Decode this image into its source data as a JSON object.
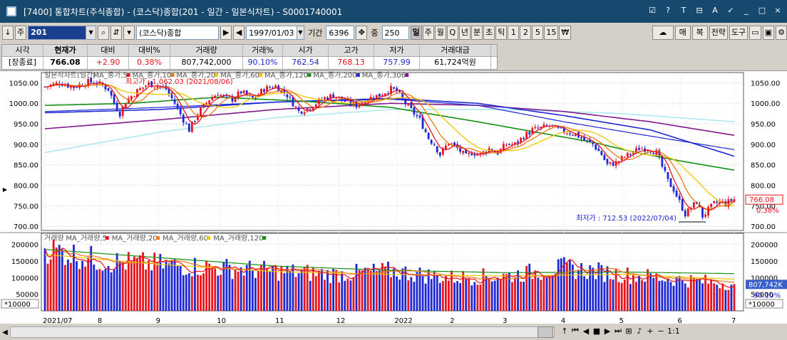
{
  "window": {
    "title": "[7400] 통합차트(주식종합) - (코스닥)종합(201 - 일간 - 일본식차트) - S0001740001",
    "buttons": [
      "☑",
      "?",
      "T",
      "⊟",
      "A",
      "✓",
      "_",
      "□",
      "×"
    ]
  },
  "toolbar": {
    "down_label": "↓",
    "type_label": "주",
    "code_value": "201",
    "search_icon": "search-icon",
    "code_name": "(코스닥)종합",
    "play_label": "▶",
    "back_label": "◀",
    "date_value": "1997/01/03",
    "period_label": "기간",
    "period_value": "6396",
    "count_label": "중",
    "count_value": "250",
    "period_buttons": [
      "일",
      "주",
      "월",
      "Q",
      "년",
      "분",
      "초",
      "틱",
      "1",
      "2",
      "5",
      "15",
      "₩"
    ],
    "selected_period": "일",
    "right_buttons": [
      "매",
      "복",
      "전략",
      "도구"
    ]
  },
  "info": {
    "headers": [
      "시각",
      "현재가",
      "대비",
      "대비%",
      "거래량",
      "거래%",
      "시가",
      "고가",
      "저가",
      "거래대금"
    ],
    "values": [
      "[장종료]",
      "766.08",
      "+2.90",
      "0.38%",
      "807,742,000",
      "90.10%",
      "762.54",
      "768.13",
      "757.99",
      "61,724억원"
    ]
  },
  "price_panel": {
    "legend": [
      "일본식차트(일간)",
      "MA_종가,5",
      "MA_종가,10",
      "MA_종가,20",
      "MA_종가,60",
      "MA_종가,120",
      "MA_종가,200",
      "MA_종가,306"
    ],
    "high_label": "최고가 : 1,062.03 (2021/08/06)",
    "low_label": "최저가 : 712.53 (2022/07/04)",
    "current_price": "766.08",
    "current_pct": "0.38%",
    "y_ticks": [
      "1050.00",
      "1000.00",
      "950.00",
      "900.00",
      "850.00",
      "800.00",
      "750.00",
      "700.00"
    ]
  },
  "volume_panel": {
    "legend": [
      "거래량",
      "MA_거래량,5",
      "MA_거래량,20",
      "MA_거래량,60",
      "MA_거래량,120"
    ],
    "y_ticks": [
      "200000",
      "150000",
      "100000",
      "50000"
    ],
    "unit": "*10000",
    "current_volume": "807,742K",
    "current_pct": "90.10%"
  },
  "x_axis": [
    "2021/07",
    "8",
    "9",
    "10",
    "11",
    "12",
    "2022",
    "2",
    "3",
    "4",
    "5",
    "6",
    "7"
  ],
  "nav": {
    "buttons": [
      "↑",
      "⏮",
      "◀",
      "■",
      "▶",
      "⏭",
      "⊞",
      "♪",
      "+",
      "−",
      "1:1"
    ]
  },
  "chart_data": {
    "type": "candlestick",
    "ylim": [
      690,
      1075
    ],
    "vol_ylim": [
      0,
      225000
    ],
    "colors": {
      "up": "#e8141e",
      "down": "#1e28d2",
      "ma5": "#e8141e",
      "ma10": "#ee7a14",
      "ma20": "#f0c800",
      "ma60": "#159015",
      "ma120": "#1e28d2",
      "ma200": "#1e28d2",
      "ma306": "#82198c",
      "ma_long": "#aee8f0"
    },
    "anchors": [
      [
        0,
        1040
      ],
      [
        5,
        1050
      ],
      [
        10,
        1040
      ],
      [
        15,
        1052
      ],
      [
        18,
        1050
      ],
      [
        22,
        1035
      ],
      [
        24,
        1000
      ],
      [
        26,
        975
      ],
      [
        28,
        1005
      ],
      [
        32,
        1030
      ],
      [
        36,
        1048
      ],
      [
        40,
        1040
      ],
      [
        42,
        1035
      ],
      [
        45,
        1000
      ],
      [
        48,
        960
      ],
      [
        50,
        935
      ],
      [
        53,
        975
      ],
      [
        57,
        1010
      ],
      [
        60,
        1025
      ],
      [
        62,
        1015
      ],
      [
        65,
        1010
      ],
      [
        68,
        1028
      ],
      [
        72,
        1010
      ],
      [
        76,
        1035
      ],
      [
        80,
        1042
      ],
      [
        84,
        1020
      ],
      [
        88,
        980
      ],
      [
        92,
        990
      ],
      [
        96,
        1010
      ],
      [
        100,
        1020
      ],
      [
        104,
        1005
      ],
      [
        108,
        995
      ],
      [
        112,
        1012
      ],
      [
        116,
        1020
      ],
      [
        118,
        1028
      ],
      [
        120,
        1035
      ],
      [
        122,
        1030
      ],
      [
        125,
        1000
      ],
      [
        128,
        975
      ],
      [
        130,
        960
      ],
      [
        133,
        915
      ],
      [
        135,
        900
      ],
      [
        137,
        875
      ],
      [
        140,
        905
      ],
      [
        143,
        890
      ],
      [
        146,
        870
      ],
      [
        148,
        880
      ],
      [
        151,
        875
      ],
      [
        154,
        890
      ],
      [
        157,
        880
      ],
      [
        160,
        900
      ],
      [
        163,
        900
      ],
      [
        166,
        920
      ],
      [
        169,
        935
      ],
      [
        172,
        940
      ],
      [
        175,
        945
      ],
      [
        178,
        935
      ],
      [
        181,
        930
      ],
      [
        184,
        925
      ],
      [
        187,
        910
      ],
      [
        190,
        900
      ],
      [
        193,
        875
      ],
      [
        195,
        850
      ],
      [
        198,
        855
      ],
      [
        201,
        870
      ],
      [
        204,
        880
      ],
      [
        206,
        890
      ],
      [
        209,
        890
      ],
      [
        212,
        880
      ],
      [
        214,
        845
      ],
      [
        216,
        810
      ],
      [
        218,
        790
      ],
      [
        220,
        760
      ],
      [
        222,
        730
      ],
      [
        224,
        745
      ],
      [
        226,
        760
      ],
      [
        228,
        725
      ],
      [
        230,
        740
      ],
      [
        232,
        755
      ],
      [
        234,
        760
      ],
      [
        236,
        755
      ],
      [
        238,
        764
      ],
      [
        239,
        766.08
      ]
    ],
    "ma_anchors": {
      "ma60": [
        [
          0,
          995
        ],
        [
          30,
          1000
        ],
        [
          60,
          1015
        ],
        [
          90,
          1005
        ],
        [
          120,
          990
        ],
        [
          150,
          955
        ],
        [
          170,
          930
        ],
        [
          190,
          905
        ],
        [
          205,
          880
        ],
        [
          220,
          860
        ],
        [
          239,
          837
        ]
      ],
      "ma120": [
        [
          0,
          980
        ],
        [
          40,
          990
        ],
        [
          80,
          1003
        ],
        [
          120,
          1010
        ],
        [
          150,
          995
        ],
        [
          180,
          955
        ],
        [
          210,
          920
        ],
        [
          239,
          887
        ]
      ],
      "ma200": [
        [
          0,
          977
        ],
        [
          40,
          985
        ],
        [
          80,
          1003
        ],
        [
          120,
          1012
        ],
        [
          150,
          1000
        ],
        [
          180,
          970
        ],
        [
          210,
          935
        ],
        [
          239,
          871
        ]
      ],
      "ma306": [
        [
          0,
          938
        ],
        [
          40,
          960
        ],
        [
          80,
          985
        ],
        [
          120,
          1000
        ],
        [
          150,
          995
        ],
        [
          180,
          980
        ],
        [
          210,
          955
        ],
        [
          239,
          922
        ]
      ],
      "ma_long": [
        [
          0,
          880
        ],
        [
          40,
          930
        ],
        [
          80,
          965
        ],
        [
          120,
          985
        ],
        [
          160,
          985
        ],
        [
          200,
          975
        ],
        [
          239,
          955
        ]
      ]
    },
    "vol_anchors": [
      [
        0,
        190000
      ],
      [
        20,
        150000
      ],
      [
        40,
        140000
      ],
      [
        60,
        130000
      ],
      [
        80,
        120000
      ],
      [
        100,
        110000
      ],
      [
        120,
        120000
      ],
      [
        140,
        100000
      ],
      [
        160,
        105000
      ],
      [
        180,
        130000
      ],
      [
        200,
        110000
      ],
      [
        220,
        95000
      ],
      [
        239,
        80774
      ]
    ],
    "vol_ma_anchors": {
      "ma120": [
        [
          0,
          185000
        ],
        [
          40,
          160000
        ],
        [
          80,
          135000
        ],
        [
          120,
          122000
        ],
        [
          160,
          115000
        ],
        [
          200,
          117000
        ],
        [
          239,
          112000
        ]
      ],
      "ma60": [
        [
          0,
          170000
        ],
        [
          40,
          140000
        ],
        [
          80,
          118000
        ],
        [
          120,
          110000
        ],
        [
          160,
          105000
        ],
        [
          200,
          110000
        ],
        [
          239,
          95000
        ]
      ]
    }
  }
}
